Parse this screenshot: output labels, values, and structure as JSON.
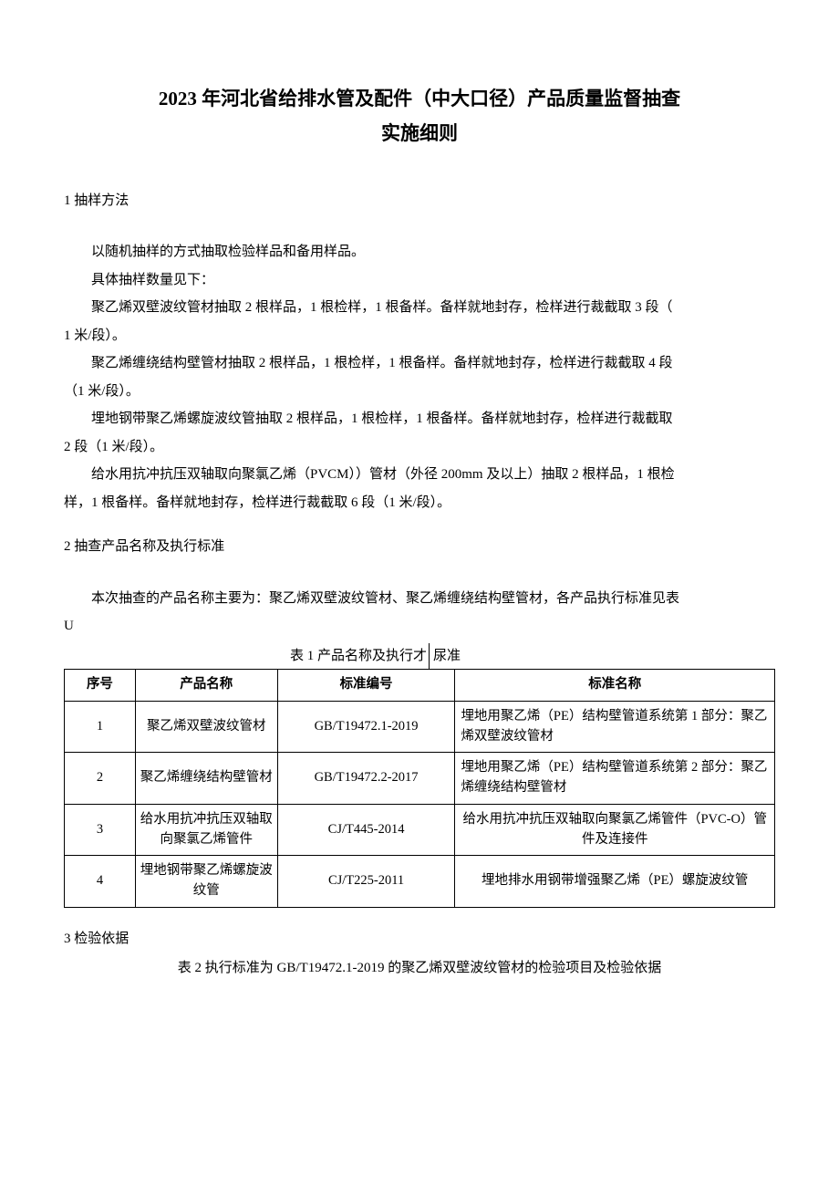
{
  "title": {
    "line1": "2023 年河北省给排水管及配件（中大口径）产品质量监督抽查",
    "line2": "实施细则"
  },
  "section1": {
    "heading": "1 抽样方法",
    "p1": "以随机抽样的方式抽取检验样品和备用样品。",
    "p2": "具体抽样数量见下：",
    "p3a": "聚乙烯双壁波纹管材抽取 2 根样品，1 根检样，1 根备样。备样就地封存，检样进行裁截取 3 段（",
    "p3b": "1 米/段）。",
    "p4a": "聚乙烯缠绕结构壁管材抽取 2 根样品，1 根检样，1 根备样。备样就地封存，检样进行裁截取 4 段",
    "p4b": "（1 米/段）。",
    "p5a": "埋地钢带聚乙烯螺旋波纹管抽取 2 根样品，1 根检样，1 根备样。备样就地封存，检样进行裁截取",
    "p5b": "2 段（1 米/段）。",
    "p6a": "给水用抗冲抗压双轴取向聚氯乙烯（PVCM））管材（外径 200mm 及以上）抽取 2 根样品，1 根检",
    "p6b": "样，1 根备样。备样就地封存，检样进行裁截取 6 段（1 米/段）。"
  },
  "section2": {
    "heading": "2 抽查产品名称及执行标准",
    "p1a": "本次抽查的产品名称主要为：聚乙烯双壁波纹管材、聚乙烯缠绕结构壁管材，各产品执行标准见表",
    "p1b": "U",
    "table_caption_left": "表 1 产品名称及执行才",
    "table_caption_right": "尿准",
    "table": {
      "columns": [
        "序号",
        "产品名称",
        "标准编号",
        "标准名称"
      ],
      "rows": [
        {
          "seq": "1",
          "name": "聚乙烯双壁波纹管材",
          "code": "GB/T19472.1-2019",
          "stdname": "埋地用聚乙烯（PE）结构壁管道系统第 1 部分：聚乙烯双壁波纹管材",
          "stdname_align": "left"
        },
        {
          "seq": "2",
          "name": "聚乙烯缠绕结构壁管材",
          "code": "GB/T19472.2-2017",
          "stdname": "埋地用聚乙烯（PE）结构壁管道系统第 2 部分：聚乙烯缠绕结构壁管材",
          "stdname_align": "left"
        },
        {
          "seq": "3",
          "name": "给水用抗冲抗压双轴取向聚氯乙烯管件",
          "code": "CJ/T445-2014",
          "stdname": "给水用抗冲抗压双轴取向聚氯乙烯管件（PVC-O）管件及连接件",
          "stdname_align": "center"
        },
        {
          "seq": "4",
          "name": "埋地钢带聚乙烯螺旋波纹管",
          "code": "CJ/T225-2011",
          "stdname": "埋地排水用钢带增强聚乙烯（PE）螺旋波纹管",
          "stdname_align": "center"
        }
      ]
    }
  },
  "section3": {
    "heading": "3 检验依据",
    "table2_caption": "表 2 执行标准为 GB/T19472.1-2019 的聚乙烯双壁波纹管材的检验项目及检验依据"
  },
  "colors": {
    "text": "#000000",
    "background": "#ffffff",
    "border": "#000000"
  }
}
